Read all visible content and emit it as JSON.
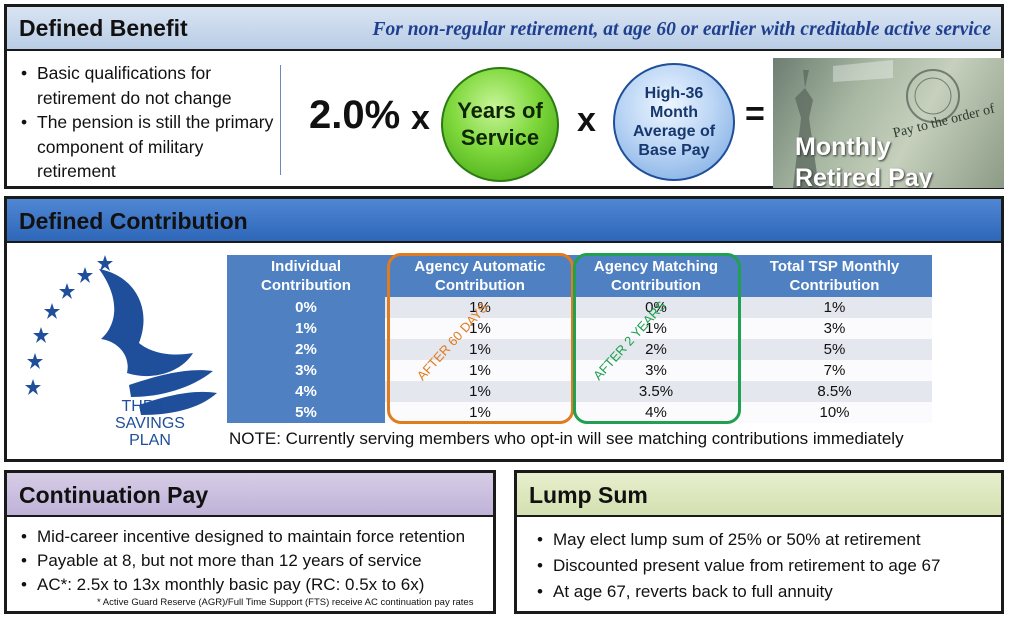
{
  "defined_benefit": {
    "title": "Defined Benefit",
    "subtitle": "For non-regular retirement, at age 60 or earlier with creditable active service",
    "bullets": [
      "Basic qualifications for retirement do not change",
      "The pension is still the primary component of military retirement"
    ],
    "formula": {
      "percent": "2.0%",
      "times1": "x",
      "years_line1": "Years of",
      "years_line2": "Service",
      "times2": "x",
      "hi36_line1": "High-36",
      "hi36_line2": "Month",
      "hi36_line3": "Average of",
      "hi36_line4": "Base Pay",
      "equals": "=",
      "result_line1": "Monthly",
      "result_line2": "Retired Pay"
    },
    "check_text": "Pay to the order of",
    "colors": {
      "header": "#c5d6ec",
      "subtitle": "#1f3f8f",
      "years_circle": "#7fd83c",
      "hi36_circle": "#bcd6f5"
    }
  },
  "defined_contribution": {
    "title": "Defined Contribution",
    "logo_text": [
      "THRIFT",
      "SAVINGS",
      "PLAN"
    ],
    "logo_icon": "eagle-stars-icon",
    "table": {
      "headers": [
        "Individual Contribution",
        "Agency Automatic Contribution",
        "Agency Matching Contribution",
        "Total TSP Monthly Contribution"
      ],
      "rows": [
        [
          "0%",
          "1%",
          "0%",
          "1%"
        ],
        [
          "1%",
          "1%",
          "1%",
          "3%"
        ],
        [
          "2%",
          "1%",
          "2%",
          "5%"
        ],
        [
          "3%",
          "1%",
          "3%",
          "7%"
        ],
        [
          "4%",
          "1%",
          "3.5%",
          "8.5%"
        ],
        [
          "5%",
          "1%",
          "4%",
          "10%"
        ]
      ]
    },
    "overlay_auto": "AFTER 60 DAYS",
    "overlay_match": "AFTER 2 YEARS",
    "note": "NOTE: Currently serving members who opt-in will see matching contributions immediately",
    "colors": {
      "header": "#3c74c4",
      "table_header": "#4f81c2",
      "auto_outline": "#e07b1f",
      "match_outline": "#20a050"
    }
  },
  "continuation_pay": {
    "title": "Continuation Pay",
    "bullets": [
      "Mid-career incentive designed to maintain force retention",
      "Payable at 8, but not more than 12 years of service",
      "AC*: 2.5x to 13x monthly basic pay (RC: 0.5x to 6x)"
    ],
    "footnote": "* Active Guard Reserve (AGR)/Full Time Support (FTS) receive AC continuation pay rates",
    "colors": {
      "header": "#cbbfdf"
    }
  },
  "lump_sum": {
    "title": "Lump Sum",
    "bullets": [
      "May elect lump sum of 25% or 50% at retirement",
      "Discounted present value from retirement to age 67",
      "At age 67, reverts back to full annuity"
    ],
    "colors": {
      "header": "#dce7be"
    }
  }
}
